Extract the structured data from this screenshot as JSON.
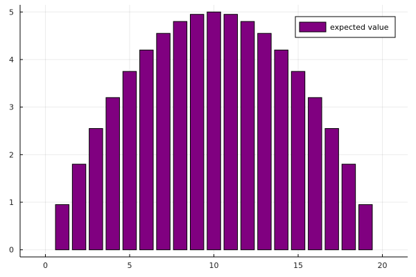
{
  "chart_data": {
    "type": "bar",
    "title": "",
    "xlabel": "",
    "ylabel": "",
    "x": [
      0,
      1,
      2,
      3,
      4,
      5,
      6,
      7,
      8,
      9,
      10,
      11,
      12,
      13,
      14,
      15,
      16,
      17,
      18,
      19,
      20
    ],
    "series": [
      {
        "name": "expected value",
        "color": "#800080",
        "values": [
          0,
          0.95,
          1.8,
          2.55,
          3.2,
          3.75,
          4.2,
          4.55,
          4.8,
          4.95,
          5.0,
          4.95,
          4.8,
          4.55,
          4.2,
          3.75,
          3.2,
          2.55,
          1.8,
          0.95,
          0
        ]
      }
    ],
    "xlim": [
      -1.5,
      21.5
    ],
    "ylim": [
      -0.15,
      5.15
    ],
    "xticks": [
      0,
      5,
      10,
      15,
      20
    ],
    "xtick_labels": [
      "0",
      "5",
      "10",
      "15",
      "20"
    ],
    "yticks": [
      0,
      1,
      2,
      3,
      4,
      5
    ],
    "ytick_labels": [
      "0",
      "1",
      "2",
      "3",
      "4",
      "5"
    ],
    "grid": true,
    "legend_position": "top-right"
  }
}
